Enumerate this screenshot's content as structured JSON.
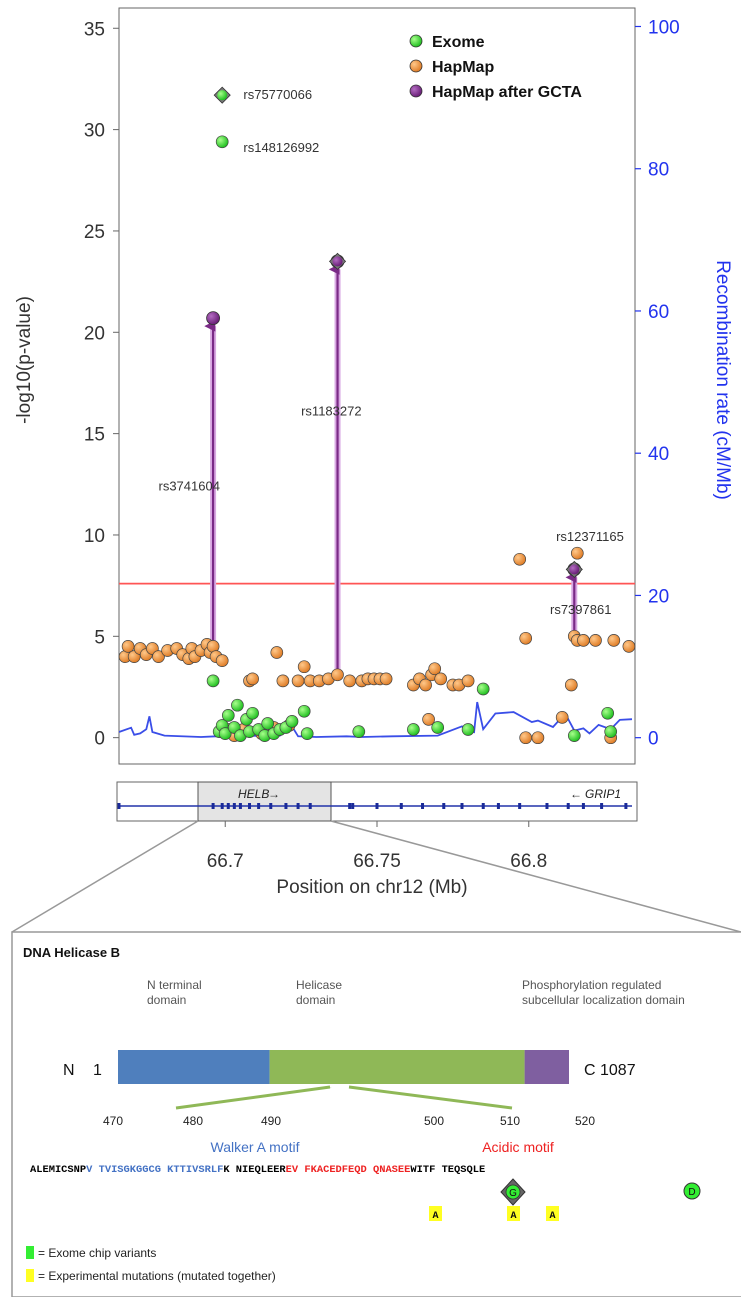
{
  "chart_data": [
    {
      "type": "scatter",
      "xlabel": "Position on chr12 (Mb)",
      "ylabel": "-log10(p-value)",
      "ylabel_right": "Recombination rate (cM/Mb)",
      "xlim": [
        66.665,
        66.835
      ],
      "ylim": [
        -1.3,
        36
      ],
      "ylim_right": [
        -3.7,
        102.6
      ],
      "x_ticks": [
        66.7,
        66.75,
        66.8
      ],
      "x_tick_labels": [
        "66.7",
        "66.75",
        "66.8"
      ],
      "y_ticks": [
        0,
        5,
        10,
        15,
        20,
        25,
        30,
        35
      ],
      "y_tick_labels": [
        "0",
        "5",
        "10",
        "15",
        "20",
        "25",
        "30",
        "35"
      ],
      "y_ticks_right": [
        0,
        20,
        40,
        60,
        80,
        100
      ],
      "y_tick_labels_right": [
        "0",
        "20",
        "40",
        "60",
        "80",
        "100"
      ],
      "significance_threshold": 7.6,
      "legend_position": "top-right",
      "colors": {
        "exome": "#33dd33",
        "hapmap": "#f0923a",
        "gcta": "#7a2a86",
        "recomb": "#3a4ee8",
        "threshold": "#ff5555",
        "right_axis": "#2233ee"
      },
      "series": [
        {
          "name": "Exome",
          "key": "exome",
          "points": [
            [
              66.698,
              0.3
            ],
            [
              66.699,
              0.6
            ],
            [
              66.7,
              0.2
            ],
            [
              66.701,
              1.1
            ],
            [
              66.703,
              0.5
            ],
            [
              66.704,
              1.6
            ],
            [
              66.705,
              0.1
            ],
            [
              66.707,
              0.9
            ],
            [
              66.708,
              0.3
            ],
            [
              66.709,
              1.2
            ],
            [
              66.711,
              0.4
            ],
            [
              66.713,
              0.1
            ],
            [
              66.714,
              0.7
            ],
            [
              66.716,
              0.2
            ],
            [
              66.718,
              0.4
            ],
            [
              66.72,
              0.5
            ],
            [
              66.722,
              0.8
            ],
            [
              66.726,
              1.3
            ],
            [
              66.727,
              0.2
            ],
            [
              66.744,
              0.3
            ],
            [
              66.762,
              0.4
            ],
            [
              66.77,
              0.5
            ],
            [
              66.78,
              0.4
            ],
            [
              66.785,
              2.4
            ],
            [
              66.815,
              0.1
            ],
            [
              66.826,
              1.2
            ],
            [
              66.696,
              2.8
            ],
            [
              66.827,
              0.3
            ]
          ]
        },
        {
          "name": "HapMap",
          "key": "hapmap",
          "points": [
            [
              66.667,
              4.0
            ],
            [
              66.668,
              4.5
            ],
            [
              66.67,
              4.0
            ],
            [
              66.672,
              4.4
            ],
            [
              66.674,
              4.1
            ],
            [
              66.676,
              4.4
            ],
            [
              66.678,
              4.0
            ],
            [
              66.681,
              4.3
            ],
            [
              66.684,
              4.4
            ],
            [
              66.686,
              4.1
            ],
            [
              66.688,
              3.9
            ],
            [
              66.689,
              4.4
            ],
            [
              66.69,
              4.0
            ],
            [
              66.692,
              4.3
            ],
            [
              66.694,
              4.6
            ],
            [
              66.695,
              4.2
            ],
            [
              66.696,
              4.5
            ],
            [
              66.697,
              4.0
            ],
            [
              66.699,
              3.8
            ],
            [
              66.701,
              0.4
            ],
            [
              66.703,
              0.1
            ],
            [
              66.706,
              0.4
            ],
            [
              66.708,
              2.8
            ],
            [
              66.709,
              2.9
            ],
            [
              66.712,
              0.2
            ],
            [
              66.716,
              0.5
            ],
            [
              66.717,
              4.2
            ],
            [
              66.719,
              2.8
            ],
            [
              66.721,
              0.6
            ],
            [
              66.724,
              2.8
            ],
            [
              66.726,
              3.5
            ],
            [
              66.728,
              2.8
            ],
            [
              66.731,
              2.8
            ],
            [
              66.734,
              2.9
            ],
            [
              66.737,
              3.1
            ],
            [
              66.741,
              2.8
            ],
            [
              66.745,
              2.8
            ],
            [
              66.747,
              2.9
            ],
            [
              66.749,
              2.9
            ],
            [
              66.751,
              2.9
            ],
            [
              66.753,
              2.9
            ],
            [
              66.762,
              2.6
            ],
            [
              66.764,
              2.9
            ],
            [
              66.766,
              2.6
            ],
            [
              66.767,
              0.9
            ],
            [
              66.768,
              3.1
            ],
            [
              66.769,
              3.4
            ],
            [
              66.771,
              2.9
            ],
            [
              66.775,
              2.6
            ],
            [
              66.777,
              2.6
            ],
            [
              66.78,
              2.8
            ],
            [
              66.797,
              8.8
            ],
            [
              66.799,
              4.9
            ],
            [
              66.799,
              0.0
            ],
            [
              66.803,
              0.0
            ],
            [
              66.811,
              1.0
            ],
            [
              66.814,
              2.6
            ],
            [
              66.815,
              5.0
            ],
            [
              66.816,
              4.8
            ],
            [
              66.818,
              4.8
            ],
            [
              66.822,
              4.8
            ],
            [
              66.827,
              0.0
            ],
            [
              66.828,
              4.8
            ],
            [
              66.833,
              4.5
            ]
          ]
        },
        {
          "name": "HapMap after GCTA",
          "key": "gcta",
          "points": [
            [
              66.696,
              20.7
            ],
            [
              66.737,
              23.5
            ],
            [
              66.815,
              8.3
            ]
          ]
        }
      ],
      "diamond_points": [
        {
          "x": 66.699,
          "y": 31.7,
          "series": "exome",
          "label": "rs75770066"
        },
        {
          "x": 66.737,
          "y": 23.5,
          "series": "gcta",
          "label": ""
        },
        {
          "x": 66.815,
          "y": 8.3,
          "series": "gcta",
          "label": ""
        }
      ],
      "arrows": [
        {
          "x": 66.696,
          "y_from": 4.6,
          "y_to": 20.7
        },
        {
          "x": 66.737,
          "y_from": 3.1,
          "y_to": 23.5
        },
        {
          "x": 66.815,
          "y_from": 5.1,
          "y_to": 8.3
        }
      ],
      "annotations": [
        {
          "text": "rs75770066",
          "x": 66.706,
          "y": 31.5
        },
        {
          "text": "rs148126992",
          "x": 66.706,
          "y": 28.9
        },
        {
          "text": "rs3741604",
          "x": 66.678,
          "y": 12.2
        },
        {
          "text": "rs1183272",
          "x": 66.725,
          "y": 15.9
        },
        {
          "text": "rs12371165",
          "x": 66.809,
          "y": 9.7
        },
        {
          "text": "rs7397861",
          "x": 66.807,
          "y": 6.1
        }
      ],
      "extra_points": [
        {
          "x": 66.699,
          "y": 29.4,
          "series": "exome"
        },
        {
          "x": 66.816,
          "y": 9.1,
          "series": "hapmap"
        }
      ],
      "recombination": [
        [
          66.665,
          0.8
        ],
        [
          66.669,
          1.4
        ],
        [
          66.67,
          0.4
        ],
        [
          66.672,
          0.6
        ],
        [
          66.674,
          1.2
        ],
        [
          66.675,
          3.0
        ],
        [
          66.676,
          0.8
        ],
        [
          66.68,
          0.3
        ],
        [
          66.692,
          0.1
        ],
        [
          66.697,
          0.2
        ],
        [
          66.7,
          0.6
        ],
        [
          66.705,
          0.4
        ],
        [
          66.712,
          0.2
        ],
        [
          66.718,
          0.3
        ],
        [
          66.722,
          1.6
        ],
        [
          66.724,
          0.2
        ],
        [
          66.73,
          0.1
        ],
        [
          66.74,
          0.2
        ],
        [
          66.745,
          0.1
        ],
        [
          66.755,
          0.2
        ],
        [
          66.77,
          0.3
        ],
        [
          66.778,
          1.6
        ],
        [
          66.782,
          0.8
        ],
        [
          66.783,
          5.0
        ],
        [
          66.785,
          1.2
        ],
        [
          66.789,
          3.4
        ],
        [
          66.795,
          3.6
        ],
        [
          66.801,
          2.2
        ],
        [
          66.803,
          2.4
        ],
        [
          66.808,
          1.5
        ],
        [
          66.812,
          3.4
        ],
        [
          66.815,
          1.0
        ],
        [
          66.818,
          1.3
        ],
        [
          66.82,
          0.6
        ],
        [
          66.823,
          1.8
        ],
        [
          66.827,
          1.2
        ],
        [
          66.83,
          2.5
        ],
        [
          66.834,
          2.6
        ]
      ],
      "gene_track": {
        "genes": [
          {
            "name": "HELB",
            "x_from": 66.695,
            "x_to": 66.731,
            "direction": "right"
          },
          {
            "name": "GRIP1",
            "x_from": 66.742,
            "x_to": 66.835,
            "direction": "left"
          }
        ],
        "exons": [
          66.665,
          66.696,
          66.699,
          66.701,
          66.703,
          66.705,
          66.708,
          66.711,
          66.715,
          66.72,
          66.724,
          66.728,
          66.741,
          66.742,
          66.75,
          66.758,
          66.765,
          66.772,
          66.778,
          66.785,
          66.79,
          66.797,
          66.806,
          66.813,
          66.818,
          66.824,
          66.832
        ]
      }
    },
    {
      "type": "diagram",
      "title": "DNA Helicase B",
      "domain_labels": [
        "N terminal\ndomain",
        "Helicase\ndomain",
        "Phosphorylation regulated\nsubcellular localization domain"
      ],
      "domains": [
        {
          "name": "N terminal domain",
          "start": 1,
          "end": 366,
          "color": "#4f7fbd"
        },
        {
          "name": "Helicase domain",
          "start": 366,
          "end": 980,
          "color": "#8fb857"
        },
        {
          "name": "Phosphorylation regulated subcellular localization domain",
          "start": 980,
          "end": 1087,
          "color": "#7f5fa0"
        }
      ],
      "n_label": "N",
      "n_number": "1",
      "c_label": "C 1087",
      "residue_numbers": [
        "470",
        "480",
        "490",
        "500",
        "510",
        "520"
      ],
      "motifs": [
        {
          "name": "Walker A motif",
          "color": "#4472c4"
        },
        {
          "name": "Acidic motif",
          "color": "#ee2222"
        }
      ],
      "sequence": [
        {
          "text": "ALEMICSNP",
          "color": "#000000"
        },
        {
          "text": "V TVISGKGGCG KTTIVSRLF",
          "color": "#4472c4"
        },
        {
          "text": "K NIEQLEER",
          "color": "#000000"
        },
        {
          "text": "EV FKACEDFEQD QNASEE",
          "color": "#ee2222"
        },
        {
          "text": "WITF TEQSQLE",
          "color": "#000000"
        }
      ],
      "exome_variants": [
        "G",
        "D"
      ],
      "experimental_mutations": [
        "A",
        "A",
        "A"
      ],
      "legend": [
        {
          "color": "#33ee33",
          "text": "= Exome chip variants"
        },
        {
          "color": "#ffff22",
          "text": "= Experimental mutations (mutated together)"
        }
      ]
    }
  ]
}
